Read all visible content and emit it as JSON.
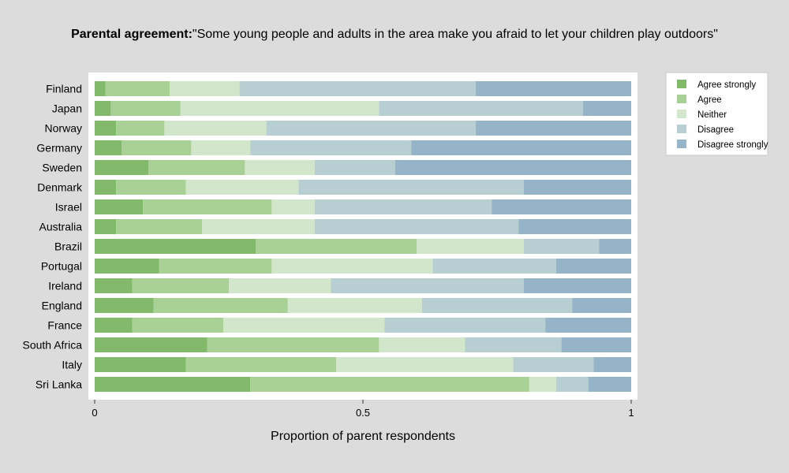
{
  "chart_data": {
    "type": "bar",
    "orientation": "horizontal",
    "stacked": true,
    "title_bold": "Parental agreement:",
    "title": "\"Some young people and adults in the area make you afraid to let your children play outdoors\"",
    "xlabel": "Proportion of parent respondents",
    "ylabel": "",
    "xlim": [
      0,
      1
    ],
    "x_ticks": [
      0,
      0.5,
      1
    ],
    "x_tick_labels": [
      "0",
      "0.5",
      "1"
    ],
    "legend_position": "right",
    "grid": false,
    "categories": [
      "Finland",
      "Japan",
      "Norway",
      "Germany",
      "Sweden",
      "Denmark",
      "Israel",
      "Australia",
      "Brazil",
      "Portugal",
      "Ireland",
      "England",
      "France",
      "South Africa",
      "Italy",
      "Sri Lanka"
    ],
    "series": [
      {
        "name": "Agree strongly",
        "color": "#82b96b",
        "values": [
          0.02,
          0.03,
          0.04,
          0.05,
          0.1,
          0.04,
          0.09,
          0.04,
          0.3,
          0.12,
          0.07,
          0.11,
          0.07,
          0.21,
          0.17,
          0.29
        ]
      },
      {
        "name": "Agree",
        "color": "#a9d195",
        "values": [
          0.12,
          0.13,
          0.09,
          0.13,
          0.18,
          0.13,
          0.24,
          0.16,
          0.3,
          0.21,
          0.18,
          0.25,
          0.17,
          0.32,
          0.28,
          0.52
        ]
      },
      {
        "name": "Neither",
        "color": "#d2e6cc",
        "values": [
          0.13,
          0.37,
          0.19,
          0.11,
          0.13,
          0.21,
          0.08,
          0.21,
          0.2,
          0.3,
          0.19,
          0.25,
          0.3,
          0.16,
          0.33,
          0.05
        ]
      },
      {
        "name": "Disagree",
        "color": "#b7ced3",
        "values": [
          0.44,
          0.38,
          0.39,
          0.3,
          0.15,
          0.42,
          0.33,
          0.38,
          0.14,
          0.23,
          0.36,
          0.28,
          0.3,
          0.18,
          0.15,
          0.06
        ]
      },
      {
        "name": "Disagree strongly",
        "color": "#96b4c7",
        "values": [
          0.29,
          0.09,
          0.29,
          0.41,
          0.44,
          0.2,
          0.26,
          0.21,
          0.06,
          0.14,
          0.2,
          0.11,
          0.16,
          0.13,
          0.07,
          0.08
        ]
      }
    ]
  },
  "colors": {
    "page_background": "#dcdcdc",
    "panel_background": "#ffffff"
  }
}
